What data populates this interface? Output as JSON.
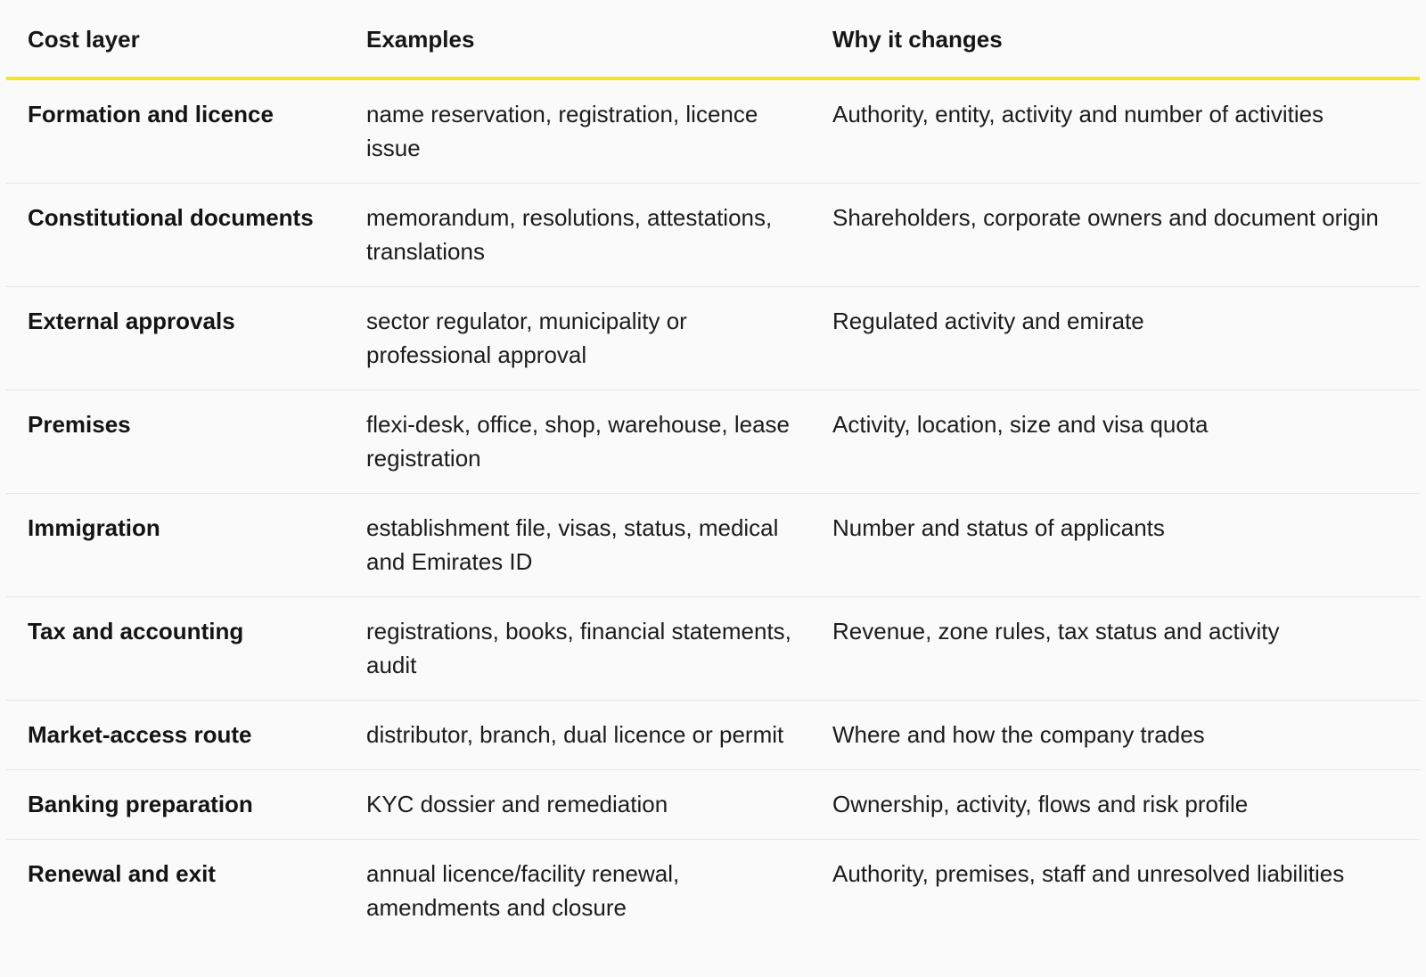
{
  "table": {
    "headers": [
      "Cost layer",
      "Examples",
      "Why it changes"
    ],
    "rows": [
      [
        "Formation and licence",
        "name reservation, registration, licence issue",
        "Authority, entity, activity and number of activities"
      ],
      [
        "Constitutional documents",
        "memorandum, resolutions, attestations, translations",
        "Shareholders, corporate owners and document origin"
      ],
      [
        "External approvals",
        "sector regulator, municipality or professional approval",
        "Regulated activity and emirate"
      ],
      [
        "Premises",
        "flexi-desk, office, shop, warehouse, lease registration",
        "Activity, location, size and visa quota"
      ],
      [
        "Immigration",
        "establishment file, visas, status, medical and Emirates ID",
        "Number and status of applicants"
      ],
      [
        "Tax and accounting",
        "registrations, books, financial statements, audit",
        "Revenue, zone rules, tax status and activity"
      ],
      [
        "Market-access route",
        "distributor, branch, dual licence or permit",
        "Where and how the company trades"
      ],
      [
        "Banking preparation",
        "KYC dossier and remediation",
        "Ownership, activity, flows and risk profile"
      ],
      [
        "Renewal and exit",
        "annual licence/facility renewal, amendments and closure",
        "Authority, premises, staff and unresolved liabilities"
      ]
    ]
  }
}
